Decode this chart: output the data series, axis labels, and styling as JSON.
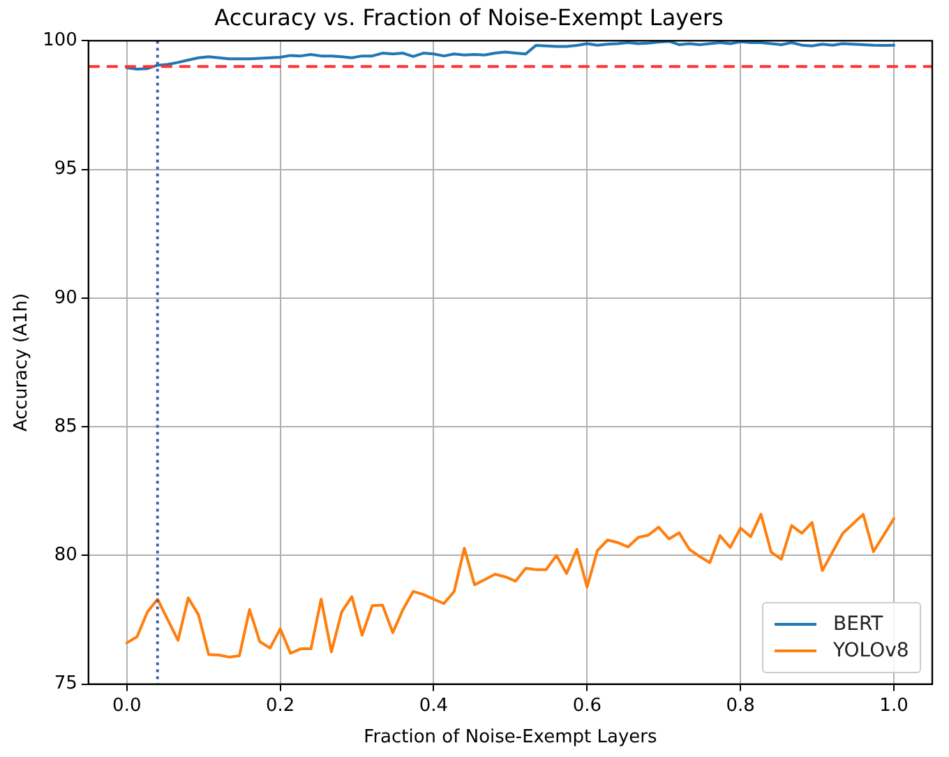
{
  "chart_data": {
    "type": "line",
    "title": "Accuracy vs. Fraction of Noise-Exempt Layers",
    "xlabel": "Fraction of Noise-Exempt Layers",
    "ylabel": "Accuracy (A1h)",
    "x": [
      0,
      0.0133,
      0.0267,
      0.04,
      0.0533,
      0.0667,
      0.08,
      0.0933,
      0.1067,
      0.12,
      0.1333,
      0.1467,
      0.16,
      0.1733,
      0.1867,
      0.2,
      0.2133,
      0.2267,
      0.24,
      0.2533,
      0.2667,
      0.28,
      0.2933,
      0.3067,
      0.32,
      0.3333,
      0.3467,
      0.36,
      0.3733,
      0.3867,
      0.4,
      0.4133,
      0.4267,
      0.44,
      0.4533,
      0.4667,
      0.48,
      0.4933,
      0.5067,
      0.52,
      0.5333,
      0.5467,
      0.56,
      0.5733,
      0.5867,
      0.6,
      0.6133,
      0.6267,
      0.64,
      0.6533,
      0.6667,
      0.68,
      0.6933,
      0.7067,
      0.72,
      0.7333,
      0.7467,
      0.76,
      0.7733,
      0.7867,
      0.8,
      0.8133,
      0.8267,
      0.84,
      0.8533,
      0.8667,
      0.88,
      0.8933,
      0.9067,
      0.92,
      0.9333,
      0.9467,
      0.96,
      0.9733,
      0.9867,
      1.0
    ],
    "series": [
      {
        "name": "BERT",
        "color": "#1f77b4",
        "values": [
          98.95,
          98.9,
          98.92,
          99.05,
          99.08,
          99.16,
          99.25,
          99.34,
          99.38,
          99.34,
          99.3,
          99.3,
          99.3,
          99.32,
          99.34,
          99.36,
          99.43,
          99.41,
          99.47,
          99.41,
          99.41,
          99.38,
          99.34,
          99.41,
          99.41,
          99.52,
          99.49,
          99.52,
          99.39,
          99.52,
          99.49,
          99.41,
          99.49,
          99.45,
          99.47,
          99.45,
          99.52,
          99.56,
          99.52,
          99.49,
          99.82,
          99.8,
          99.78,
          99.78,
          99.82,
          99.89,
          99.83,
          99.87,
          99.89,
          99.93,
          99.89,
          99.91,
          99.95,
          99.98,
          99.85,
          99.89,
          99.85,
          99.89,
          99.93,
          99.89,
          99.96,
          99.93,
          99.93,
          99.89,
          99.85,
          99.93,
          99.83,
          99.8,
          99.87,
          99.83,
          99.89,
          99.87,
          99.85,
          99.83,
          99.82,
          99.83
        ]
      },
      {
        "name": "YOLOv8",
        "color": "#ff7f0e",
        "values": [
          76.6,
          76.84,
          77.8,
          78.3,
          77.5,
          76.7,
          78.35,
          77.7,
          76.15,
          76.13,
          76.05,
          76.1,
          77.9,
          76.65,
          76.4,
          77.15,
          76.2,
          76.37,
          76.37,
          78.3,
          76.25,
          77.8,
          78.4,
          76.9,
          78.05,
          78.07,
          77.0,
          77.9,
          78.6,
          78.48,
          78.3,
          78.13,
          78.6,
          80.28,
          78.86,
          79.06,
          79.27,
          79.17,
          79.0,
          79.5,
          79.45,
          79.45,
          80.0,
          79.3,
          80.24,
          78.77,
          80.18,
          80.6,
          80.5,
          80.33,
          80.7,
          80.79,
          81.1,
          80.64,
          80.88,
          80.24,
          79.96,
          79.72,
          80.77,
          80.31,
          81.06,
          80.73,
          81.6,
          80.13,
          79.85,
          81.16,
          80.86,
          81.28,
          79.41,
          80.13,
          80.86,
          81.23,
          81.6,
          80.15,
          80.79,
          81.43
        ]
      }
    ],
    "xlim": [
      -0.05,
      1.05
    ],
    "xticks": [
      {
        "value": 0,
        "label": "0.0"
      },
      {
        "value": 0.2,
        "label": "0.2"
      },
      {
        "value": 0.4,
        "label": "0.4"
      },
      {
        "value": 0.6,
        "label": "0.6"
      },
      {
        "value": 0.8,
        "label": "0.8"
      },
      {
        "value": 1,
        "label": "1.0"
      }
    ],
    "ylim": [
      75,
      100
    ],
    "yticks": [
      75,
      80,
      85,
      90,
      95,
      100
    ],
    "ref_lines": [
      {
        "axis": "y",
        "value": 99,
        "color": "#ff3333",
        "line_style": "dashed"
      },
      {
        "axis": "x",
        "value": 0.04,
        "color": "#3a5fad",
        "line_style": "dotted"
      }
    ],
    "grid": true,
    "legend": "bottom right",
    "marker": "none",
    "line_style": "solid"
  }
}
